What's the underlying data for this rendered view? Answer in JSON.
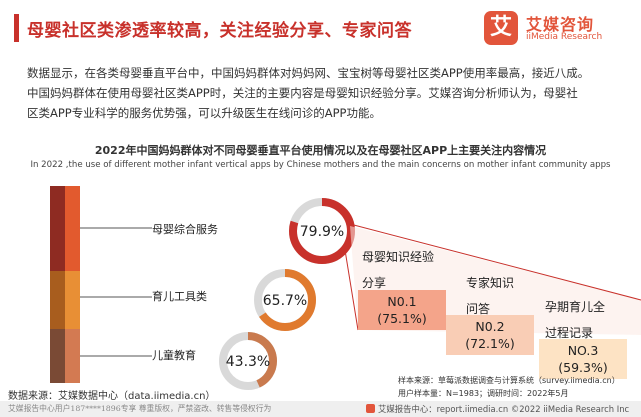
{
  "header": {
    "title": "母婴社区类渗透率较高，关注经验分享、专家问答",
    "logo_mark": "艾",
    "logo_cn": "艾媒咨询",
    "logo_en": "iiMedia Research"
  },
  "summary": {
    "line1": "数据显示，在各类母婴垂直平台中，中国妈妈群体对妈妈网、宝宝树等母婴社区类APP使用率最高，接近八成。",
    "line2": "中国妈妈群体在使用母婴社区类APP时，关注的主要内容是母婴知识经验分享。艾媒咨询分析师认为，母婴社",
    "line3": "区类APP专业科学的服务优势强，可以升级医生在线问诊的APP功能。"
  },
  "chart_data": [
    {
      "type": "pie",
      "title": "2022年中国妈妈群体对不同母婴垂直平台使用情况以及在母婴社区APP上主要关注内容情况",
      "subtitle": "In 2022 ,the use of different mother infant vertical apps by Chinese mothers and the main concerns on mother infant community apps",
      "categories": [
        "母婴综合服务",
        "育儿工具类",
        "儿童教育"
      ],
      "values": [
        79.9,
        65.7,
        43.3
      ],
      "labels": [
        "79.9%",
        "65.7%",
        "43.3%"
      ],
      "unit": "%",
      "colors": [
        "#c8312b",
        "#e07a2e",
        "#c97a4e"
      ]
    },
    {
      "type": "bar",
      "categories": [
        "母婴知识经验分享",
        "专家知识问答",
        "孕期育儿全过程记录"
      ],
      "ranks": [
        "N0.1",
        "N0.2",
        "NO.3"
      ],
      "values": [
        75.1,
        72.1,
        59.3
      ],
      "labels": [
        "(75.1%)",
        "(72.1%)",
        "(59.3%)"
      ],
      "heading_lines": [
        [
          "母婴知识经验",
          "分享"
        ],
        [
          "专家知识",
          "问答"
        ],
        [
          "孕期育儿全",
          "过程记录"
        ]
      ],
      "unit": "%",
      "colors": [
        "#f4a48a",
        "#f9cdb5",
        "#fde3c4"
      ]
    }
  ],
  "sample": {
    "line1": "样本来源：草莓派数据调查与计算系统（survey.iimedia.cn）",
    "line2": "用户样本量：N=1983；调研时间：2022年5月"
  },
  "source": "数据来源：艾媒数据中心（data.iimedia.cn）",
  "footer": {
    "left": "艾媒报告中心用户187****1896专享 尊重版权，严禁盗改、转售等侵权行为",
    "right": "艾媒报告中心：report.iimedia.cn  ©2022  iiMedia Research  Inc"
  },
  "colors": {
    "brand_red": "#c8312b",
    "brand_orange": "#e2553b"
  }
}
